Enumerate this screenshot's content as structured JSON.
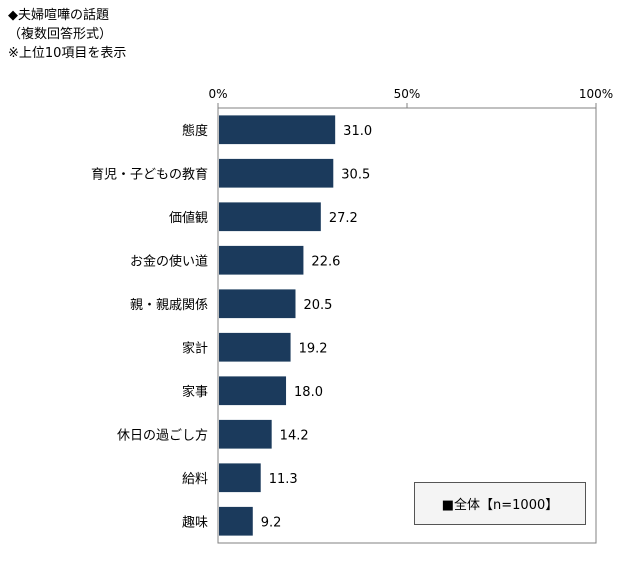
{
  "header": {
    "title": "◆夫婦喧嘩の話題",
    "subtitle": "（複数回答形式）",
    "note": "※上位10項目を表示"
  },
  "colors": {
    "bar": "#1b3a5c",
    "axis": "#808080",
    "text": "#000000"
  },
  "chart_data": {
    "type": "bar",
    "orientation": "horizontal",
    "categories": [
      "態度",
      "育児・子どもの教育",
      "価値観",
      "お金の使い道",
      "親・親戚関係",
      "家計",
      "家事",
      "休日の過ごし方",
      "給料",
      "趣味"
    ],
    "series": [
      {
        "name": "全体【n=1000】",
        "values": [
          31.0,
          30.5,
          27.2,
          22.6,
          20.5,
          19.2,
          18.0,
          14.2,
          11.3,
          9.2
        ]
      }
    ],
    "value_labels": [
      "31.0",
      "30.5",
      "27.2",
      "22.6",
      "20.5",
      "19.2",
      "18.0",
      "14.2",
      "11.3",
      "9.2"
    ],
    "xlim": [
      0,
      100
    ],
    "ticks": [
      0,
      50,
      100
    ],
    "tick_labels": [
      "0%",
      "50%",
      "100%"
    ],
    "grid": false,
    "legend_position": "bottom-right",
    "legend_text": "■全体【n=1000】"
  }
}
